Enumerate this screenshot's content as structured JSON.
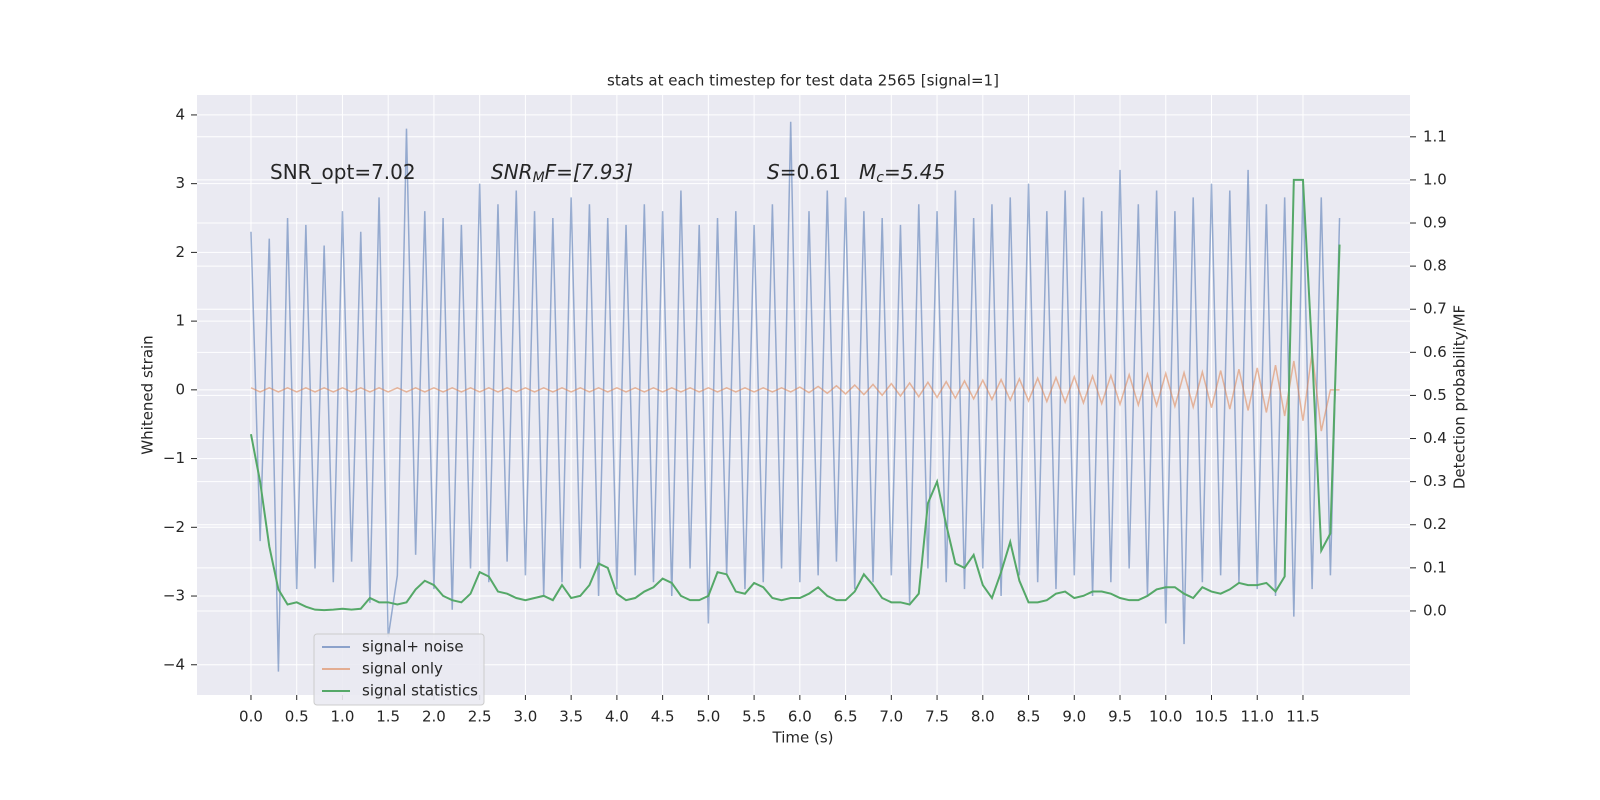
{
  "chart_data": {
    "type": "line",
    "title": "stats at each timestep for test data 2565 [signal=1]",
    "xlabel": "Time (s)",
    "ylabel": "Whitened strain",
    "y2label": "Detection probability/MF",
    "annotations": [
      [
        "SNR_opt=7.02"
      ],
      [
        "SNR",
        "M",
        "F=[7.93]"
      ],
      [
        "S",
        "=0.61"
      ],
      [
        "M",
        "c",
        "=5.45"
      ]
    ],
    "legend": "lower left",
    "grid": true,
    "xlim": [
      -0.59,
      12.67
    ],
    "ylim": [
      -4.44,
      4.29
    ],
    "y2lim": [
      -0.195,
      1.197
    ],
    "xticks": [
      {
        "value": 0,
        "label": "0.0"
      },
      0.5,
      {
        "value": 1,
        "label": "1.0"
      },
      1.5,
      {
        "value": 2,
        "label": "2.0"
      },
      2.5,
      {
        "value": 3,
        "label": "3.0"
      },
      3.5,
      {
        "value": 4,
        "label": "4.0"
      },
      4.5,
      {
        "value": 5,
        "label": "5.0"
      },
      5.5,
      {
        "value": 6,
        "label": "6.0"
      },
      6.5,
      {
        "value": 7,
        "label": "7.0"
      },
      7.5,
      {
        "value": 8,
        "label": "8.0"
      },
      8.5,
      {
        "value": 9,
        "label": "9.0"
      },
      9.5,
      {
        "value": 10,
        "label": "10.0"
      },
      10.5,
      {
        "value": 11,
        "label": "11.0"
      },
      11.5
    ],
    "yticks": [
      {
        "value": -4,
        "label": "−4"
      },
      {
        "value": -3,
        "label": "−3"
      },
      {
        "value": -2,
        "label": "−2"
      },
      {
        "value": -1,
        "label": "−1"
      },
      0,
      1,
      2,
      3,
      4
    ],
    "y2ticks": [
      {
        "value": 0,
        "label": "0.0"
      },
      0.1,
      0.2,
      0.3,
      0.4,
      0.5,
      0.6,
      0.7,
      0.8,
      0.9,
      {
        "value": 1,
        "label": "1.0"
      },
      1.1
    ],
    "x": [
      0.0,
      0.1,
      0.2,
      0.3,
      0.4,
      0.5,
      0.6,
      0.7,
      0.8,
      0.9,
      1.0,
      1.1,
      1.2,
      1.3,
      1.4,
      1.5,
      1.6,
      1.7,
      1.8,
      1.9,
      2.0,
      2.1,
      2.2,
      2.3,
      2.4,
      2.5,
      2.6,
      2.7,
      2.8,
      2.9,
      3.0,
      3.1,
      3.2,
      3.3,
      3.4,
      3.5,
      3.6,
      3.7,
      3.8,
      3.9,
      4.0,
      4.1,
      4.2,
      4.3,
      4.4,
      4.5,
      4.6,
      4.7,
      4.8,
      4.9,
      5.0,
      5.1,
      5.2,
      5.3,
      5.4,
      5.5,
      5.6,
      5.7,
      5.8,
      5.9,
      6.0,
      6.1,
      6.2,
      6.3,
      6.4,
      6.5,
      6.6,
      6.7,
      6.8,
      6.9,
      7.0,
      7.1,
      7.2,
      7.3,
      7.4,
      7.5,
      7.6,
      7.7,
      7.8,
      7.9,
      8.0,
      8.1,
      8.2,
      8.3,
      8.4,
      8.5,
      8.6,
      8.7,
      8.8,
      8.9,
      9.0,
      9.1,
      9.2,
      9.3,
      9.4,
      9.5,
      9.6,
      9.7,
      9.8,
      9.9,
      10.0,
      10.1,
      10.2,
      10.3,
      10.4,
      10.5,
      10.6,
      10.7,
      10.8,
      10.9,
      11.0,
      11.1,
      11.2,
      11.3,
      11.4,
      11.5,
      11.6,
      11.7,
      11.8,
      11.9
    ],
    "series": [
      {
        "name": "signal+ noise",
        "color": "#4c72b0",
        "values": [
          2.3,
          -2.2,
          2.2,
          -4.1,
          2.5,
          -2.9,
          2.4,
          -2.6,
          2.1,
          -2.8,
          2.6,
          -2.5,
          2.3,
          -3.1,
          2.8,
          -3.6,
          -2.7,
          3.8,
          -2.4,
          2.6,
          -2.9,
          2.5,
          -3.2,
          2.4,
          -2.6,
          3.0,
          -2.8,
          2.7,
          -2.5,
          2.9,
          -2.7,
          2.6,
          -3.0,
          2.5,
          -2.8,
          2.8,
          -2.6,
          2.7,
          -3.0,
          2.5,
          -2.9,
          2.4,
          -2.7,
          2.7,
          -2.8,
          2.6,
          -3.0,
          2.9,
          -2.6,
          2.4,
          -3.4,
          2.5,
          -2.7,
          2.6,
          -2.9,
          2.4,
          -2.8,
          2.7,
          -2.6,
          3.9,
          -2.8,
          2.6,
          -2.7,
          2.9,
          -2.5,
          2.8,
          -2.9,
          2.6,
          -2.8,
          2.5,
          -2.7,
          2.4,
          -3.1,
          2.7,
          -2.6,
          2.6,
          -2.8,
          2.9,
          -2.9,
          2.5,
          -2.6,
          2.7,
          -3.0,
          2.8,
          -2.7,
          3.0,
          -2.8,
          2.6,
          -2.9,
          2.9,
          -2.7,
          2.8,
          -3.0,
          2.6,
          -2.8,
          3.2,
          -2.6,
          2.7,
          -3.0,
          2.9,
          -3.4,
          2.6,
          -3.7,
          2.8,
          -2.8,
          3.0,
          -2.7,
          2.9,
          -2.8,
          3.2,
          -2.9,
          2.7,
          -3.0,
          2.8,
          -3.3,
          3.0,
          -2.9,
          2.8,
          -2.7,
          2.5
        ]
      },
      {
        "name": "signal only",
        "color": "#dd8452",
        "values": [
          0.03,
          -0.03,
          0.03,
          -0.03,
          0.03,
          -0.03,
          0.03,
          -0.03,
          0.03,
          -0.03,
          0.03,
          -0.03,
          0.03,
          -0.03,
          0.03,
          -0.03,
          0.03,
          -0.03,
          0.03,
          -0.03,
          0.03,
          -0.03,
          0.03,
          -0.03,
          0.03,
          -0.03,
          0.03,
          -0.03,
          0.03,
          -0.03,
          0.03,
          -0.03,
          0.03,
          -0.03,
          0.03,
          -0.03,
          0.03,
          -0.03,
          0.03,
          -0.03,
          0.03,
          -0.03,
          0.03,
          -0.03,
          0.03,
          -0.03,
          0.03,
          -0.03,
          0.03,
          -0.03,
          0.03,
          -0.03,
          0.03,
          -0.03,
          0.03,
          -0.03,
          0.03,
          -0.03,
          0.03,
          -0.03,
          0.04,
          -0.04,
          0.05,
          -0.05,
          0.06,
          -0.06,
          0.07,
          -0.07,
          0.08,
          -0.08,
          0.09,
          -0.09,
          0.1,
          -0.1,
          0.11,
          -0.11,
          0.12,
          -0.12,
          0.13,
          -0.13,
          0.14,
          -0.14,
          0.15,
          -0.15,
          0.16,
          -0.16,
          0.17,
          -0.17,
          0.18,
          -0.18,
          0.19,
          -0.19,
          0.2,
          -0.2,
          0.21,
          -0.21,
          0.22,
          -0.22,
          0.23,
          -0.23,
          0.24,
          -0.24,
          0.25,
          -0.25,
          0.26,
          -0.26,
          0.28,
          -0.28,
          0.3,
          -0.3,
          0.32,
          -0.33,
          0.36,
          -0.38,
          0.42,
          -0.45,
          0.55,
          -0.6,
          0.0,
          0.0
        ]
      },
      {
        "name": "signal statistics",
        "color": "#55a868",
        "axis": "y2",
        "values": [
          0.41,
          0.3,
          0.15,
          0.05,
          0.015,
          0.02,
          0.01,
          0.003,
          0.002,
          0.003,
          0.005,
          0.003,
          0.005,
          0.03,
          0.02,
          0.02,
          0.015,
          0.02,
          0.05,
          0.07,
          0.06,
          0.035,
          0.025,
          0.02,
          0.04,
          0.09,
          0.08,
          0.045,
          0.04,
          0.03,
          0.025,
          0.03,
          0.035,
          0.025,
          0.06,
          0.03,
          0.035,
          0.06,
          0.11,
          0.1,
          0.04,
          0.025,
          0.03,
          0.045,
          0.055,
          0.075,
          0.065,
          0.035,
          0.025,
          0.025,
          0.035,
          0.09,
          0.085,
          0.045,
          0.04,
          0.065,
          0.055,
          0.03,
          0.025,
          0.03,
          0.03,
          0.04,
          0.055,
          0.035,
          0.025,
          0.025,
          0.045,
          0.085,
          0.06,
          0.03,
          0.02,
          0.02,
          0.015,
          0.04,
          0.25,
          0.3,
          0.2,
          0.11,
          0.1,
          0.13,
          0.06,
          0.03,
          0.09,
          0.16,
          0.07,
          0.02,
          0.02,
          0.025,
          0.04,
          0.045,
          0.03,
          0.035,
          0.045,
          0.045,
          0.04,
          0.03,
          0.025,
          0.025,
          0.035,
          0.05,
          0.055,
          0.055,
          0.04,
          0.03,
          0.055,
          0.045,
          0.04,
          0.05,
          0.065,
          0.06,
          0.06,
          0.065,
          0.045,
          0.08,
          1.0,
          1.0,
          0.6,
          0.14,
          0.18,
          0.85
        ]
      }
    ]
  }
}
